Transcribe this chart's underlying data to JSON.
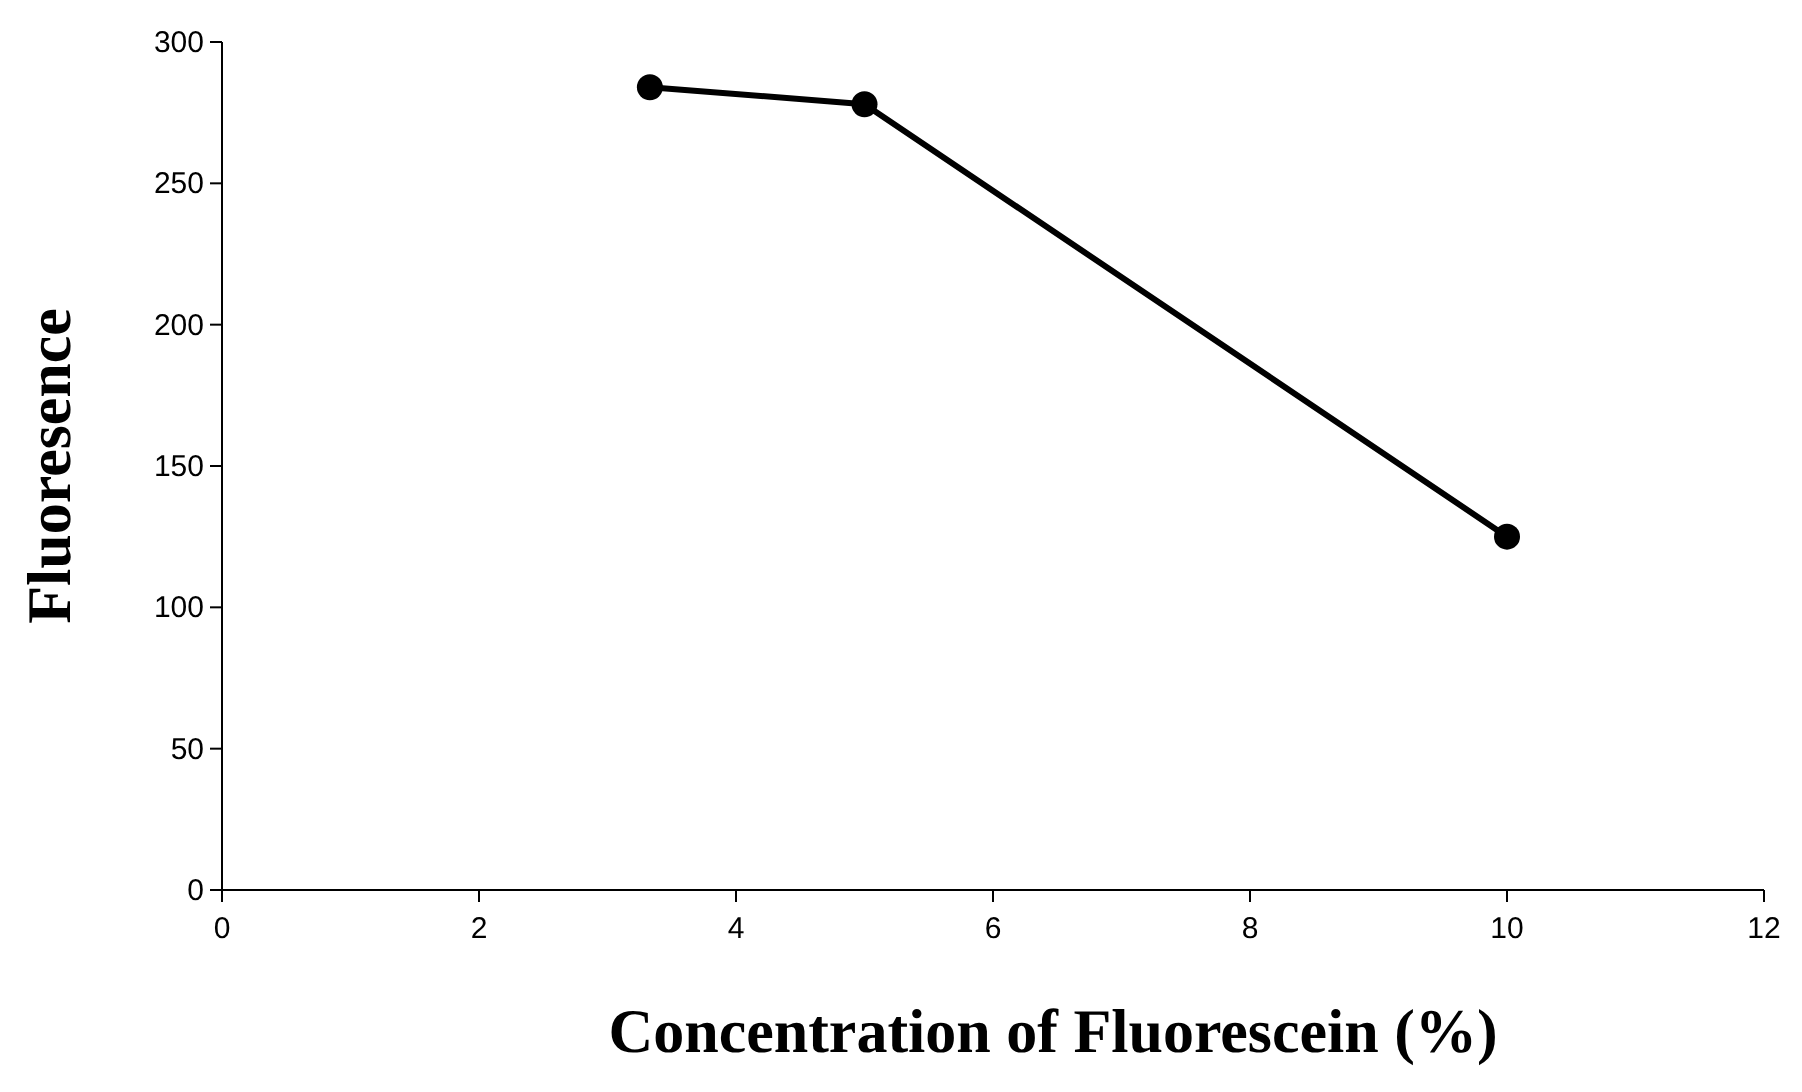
{
  "chart_data": {
    "type": "line",
    "xlabel": "Concentration of Fluorescein (%)",
    "ylabel": "Fluoresence",
    "x": [
      3.33,
      5,
      10
    ],
    "series": [
      {
        "color": "#000000",
        "values": [
          284,
          278,
          125
        ]
      }
    ],
    "xlim": [
      0,
      12
    ],
    "xticks": [
      0,
      2,
      4,
      6,
      8,
      10,
      12
    ],
    "ylim": [
      0,
      300
    ],
    "yticks": [
      0,
      50,
      100,
      150,
      200,
      250,
      300
    ],
    "grid": false,
    "marker": "circle",
    "line_style": "solid"
  }
}
